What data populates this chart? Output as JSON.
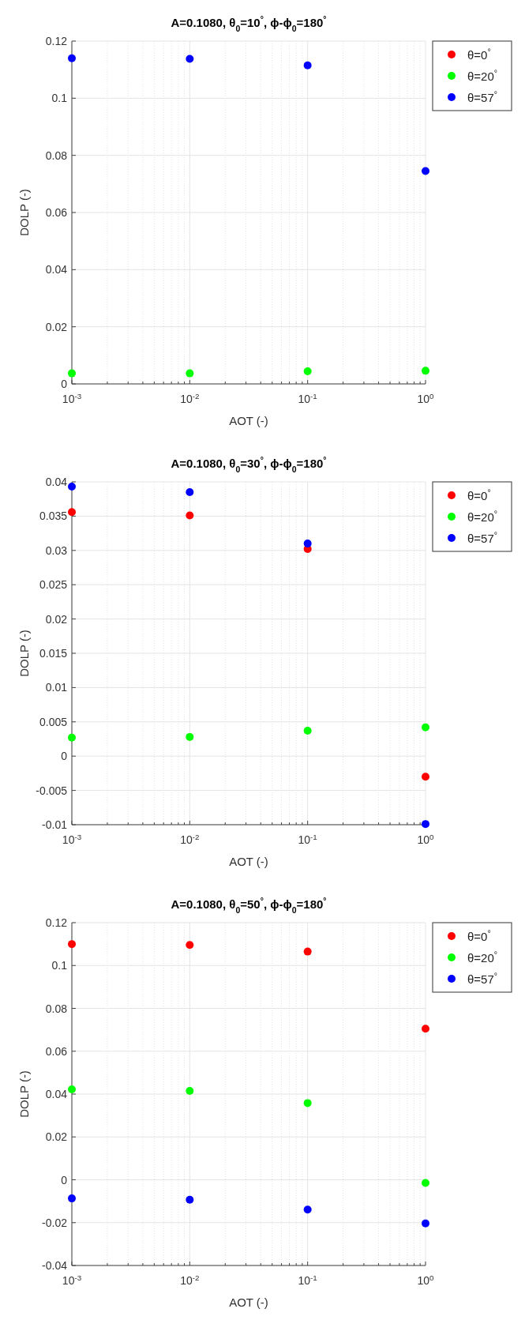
{
  "chart_data": [
    {
      "type": "scatter",
      "title": "A=0.1080, θ$_{0}$=10$^{°}$, ϕ-ϕ$_{0}$=180$^{°}$",
      "xlabel": "AOT (-)",
      "ylabel": "DOLP (-)",
      "log": "x",
      "x": [
        0.001,
        0.01,
        0.1,
        1
      ],
      "xlim": [
        0.001,
        1
      ],
      "xticks": [
        {
          "value": 0.001,
          "label": "10$^{-3}$"
        },
        {
          "value": 0.01,
          "label": "10$^{-2}$"
        },
        {
          "value": 0.1,
          "label": "10$^{-1}$"
        },
        {
          "value": 1,
          "label": "10$^{0}$"
        }
      ],
      "ylim": [
        0,
        0.12
      ],
      "yticks": [
        0,
        0.02,
        0.04,
        0.06,
        0.08,
        0.1,
        0.12
      ],
      "grid": true,
      "legend": "top right",
      "marker": "circle",
      "series": [
        {
          "name": "θ=0$^{°}$",
          "color": "#ff0000",
          "values": [
            null,
            null,
            null,
            null
          ]
        },
        {
          "name": "θ=20$^{°}$",
          "color": "#00ff00",
          "values": [
            0.0037,
            0.0037,
            0.0044,
            0.0046
          ]
        },
        {
          "name": "θ=57$^{°}$",
          "color": "#0000ff",
          "values": [
            0.114,
            0.1138,
            0.1115,
            0.0745
          ]
        }
      ]
    },
    {
      "type": "scatter",
      "title": "A=0.1080, θ$_{0}$=30$^{°}$, ϕ-ϕ$_{0}$=180$^{°}$",
      "xlabel": "AOT (-)",
      "ylabel": "DOLP (-)",
      "log": "x",
      "x": [
        0.001,
        0.01,
        0.1,
        1
      ],
      "xlim": [
        0.001,
        1
      ],
      "xticks": [
        {
          "value": 0.001,
          "label": "10$^{-3}$"
        },
        {
          "value": 0.01,
          "label": "10$^{-2}$"
        },
        {
          "value": 0.1,
          "label": "10$^{-1}$"
        },
        {
          "value": 1,
          "label": "10$^{0}$"
        }
      ],
      "ylim": [
        -0.01,
        0.04
      ],
      "yticks": [
        -0.01,
        -0.005,
        0,
        0.005,
        0.01,
        0.015,
        0.02,
        0.025,
        0.03,
        0.035,
        0.04
      ],
      "grid": true,
      "legend": "top right",
      "marker": "circle",
      "series": [
        {
          "name": "θ=0$^{°}$",
          "color": "#ff0000",
          "values": [
            0.0356,
            0.0351,
            0.0302,
            -0.003
          ]
        },
        {
          "name": "θ=20$^{°}$",
          "color": "#00ff00",
          "values": [
            0.0027,
            0.0028,
            0.0037,
            0.0042
          ]
        },
        {
          "name": "θ=57$^{°}$",
          "color": "#0000ff",
          "values": [
            0.0393,
            0.0385,
            0.031,
            -0.0099
          ]
        }
      ]
    },
    {
      "type": "scatter",
      "title": "A=0.1080, θ$_{0}$=50$^{°}$, ϕ-ϕ$_{0}$=180$^{°}$",
      "xlabel": "AOT (-)",
      "ylabel": "DOLP (-)",
      "log": "x",
      "x": [
        0.001,
        0.01,
        0.1,
        1
      ],
      "xlim": [
        0.001,
        1
      ],
      "xticks": [
        {
          "value": 0.001,
          "label": "10$^{-3}$"
        },
        {
          "value": 0.01,
          "label": "10$^{-2}$"
        },
        {
          "value": 0.1,
          "label": "10$^{-1}$"
        },
        {
          "value": 1,
          "label": "10$^{0}$"
        }
      ],
      "ylim": [
        -0.04,
        0.12
      ],
      "yticks": [
        -0.04,
        -0.02,
        0,
        0.02,
        0.04,
        0.06,
        0.08,
        0.1,
        0.12
      ],
      "grid": true,
      "legend": "top right",
      "marker": "circle",
      "series": [
        {
          "name": "θ=0$^{°}$",
          "color": "#ff0000",
          "values": [
            0.11,
            0.1096,
            0.1065,
            0.0705
          ]
        },
        {
          "name": "θ=20$^{°}$",
          "color": "#00ff00",
          "values": [
            0.0422,
            0.0415,
            0.0358,
            -0.0015
          ]
        },
        {
          "name": "θ=57$^{°}$",
          "color": "#0000ff",
          "values": [
            -0.0087,
            -0.0093,
            -0.0139,
            -0.0204
          ]
        }
      ]
    }
  ]
}
